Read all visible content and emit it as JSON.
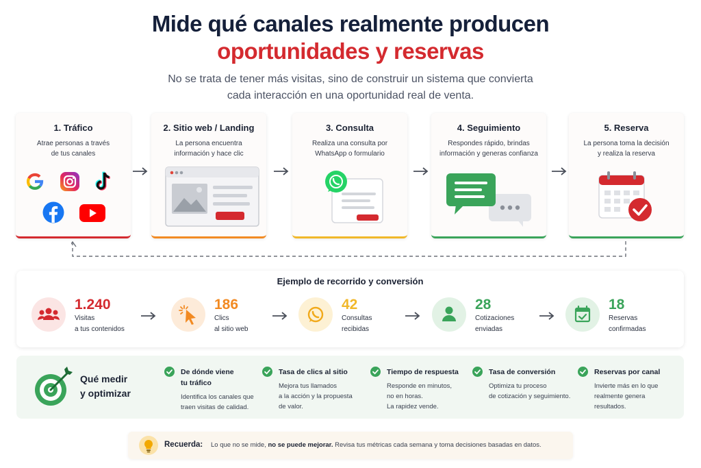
{
  "header": {
    "title_line1": "Mide qué canales realmente producen",
    "title_line2": "oportunidades y reservas",
    "subtitle_line1": "No se trata de tener más visitas, sino de construir un sistema que convierta",
    "subtitle_line2": "cada interacción en una oportunidad real de venta."
  },
  "colors": {
    "red": "#d42a2f",
    "orange": "#f28a22",
    "yellow": "#f1b82a",
    "green": "#3aa45a",
    "navy": "#15203a"
  },
  "steps": [
    {
      "title": "1. Tráfico",
      "desc1": "Atrae personas a través",
      "desc2": "de tus canales",
      "icons": [
        "google-icon",
        "instagram-icon",
        "tiktok-icon",
        "facebook-icon",
        "youtube-icon"
      ],
      "accent": "#d42a2f"
    },
    {
      "title": "2. Sitio web / Landing",
      "desc1": "La persona encuentra",
      "desc2": "información y hace clic",
      "icon": "browser-window-icon",
      "accent": "#f28a22"
    },
    {
      "title": "3. Consulta",
      "desc1": "Realiza una consulta por",
      "desc2": "WhatsApp o formulario",
      "icon": "whatsapp-form-icon",
      "accent": "#f1b82a"
    },
    {
      "title": "4. Seguimiento",
      "desc1": "Respondes rápido, brindas",
      "desc2": "información y generas confianza",
      "icon": "chat-bubbles-icon",
      "accent": "#3aa45a"
    },
    {
      "title": "5. Reserva",
      "desc1": "La persona toma la decisión",
      "desc2": "y realiza la reserva",
      "icon": "calendar-check-icon",
      "accent": "#3aa45a"
    }
  ],
  "conversion": {
    "title": "Ejemplo de recorrido y conversión",
    "metrics": [
      {
        "value": "1.240",
        "label1": "Visitas",
        "label2": "a tus contenidos",
        "icon": "users-icon",
        "color": "#d42a2f"
      },
      {
        "value": "186",
        "label1": "Clics",
        "label2": "al sitio web",
        "icon": "cursor-click-icon",
        "color": "#f28a22"
      },
      {
        "value": "42",
        "label1": "Consultas",
        "label2": "recibidas",
        "icon": "whatsapp-icon",
        "color": "#f1b82a"
      },
      {
        "value": "28",
        "label1": "Cotizaciones",
        "label2": "enviadas",
        "icon": "person-icon",
        "color": "#3aa45a"
      },
      {
        "value": "18",
        "label1": "Reservas",
        "label2": "confirmadas",
        "icon": "calendar-check-icon",
        "color": "#3aa45a"
      }
    ]
  },
  "measure": {
    "label1": "Qué medir",
    "label2": "y optimizar",
    "kpis": [
      {
        "title1": "De dónde viene",
        "title2": "tu tráfico",
        "desc": [
          "Identifica los canales que",
          "traen visitas de calidad."
        ]
      },
      {
        "title1": "Tasa de clics al sitio",
        "title2": "",
        "desc": [
          "Mejora tus llamados",
          "a la acción y la propuesta",
          "de valor."
        ]
      },
      {
        "title1": "Tiempo de respuesta",
        "title2": "",
        "desc": [
          "Responde en minutos,",
          "no en horas.",
          "La rapidez vende."
        ]
      },
      {
        "title1": "Tasa de conversión",
        "title2": "",
        "desc": [
          "Optimiza tu proceso",
          "de cotización y seguimiento."
        ]
      },
      {
        "title1": "Reservas por canal",
        "title2": "",
        "desc": [
          "Invierte más en lo que",
          "realmente genera",
          "resultados."
        ]
      }
    ]
  },
  "remember": {
    "label": "Recuerda:",
    "text_a": "Lo que no se mide, ",
    "text_bold": "no se puede mejorar.",
    "text_b": " Revisa tus métricas cada semana y toma decisiones basadas en datos."
  }
}
